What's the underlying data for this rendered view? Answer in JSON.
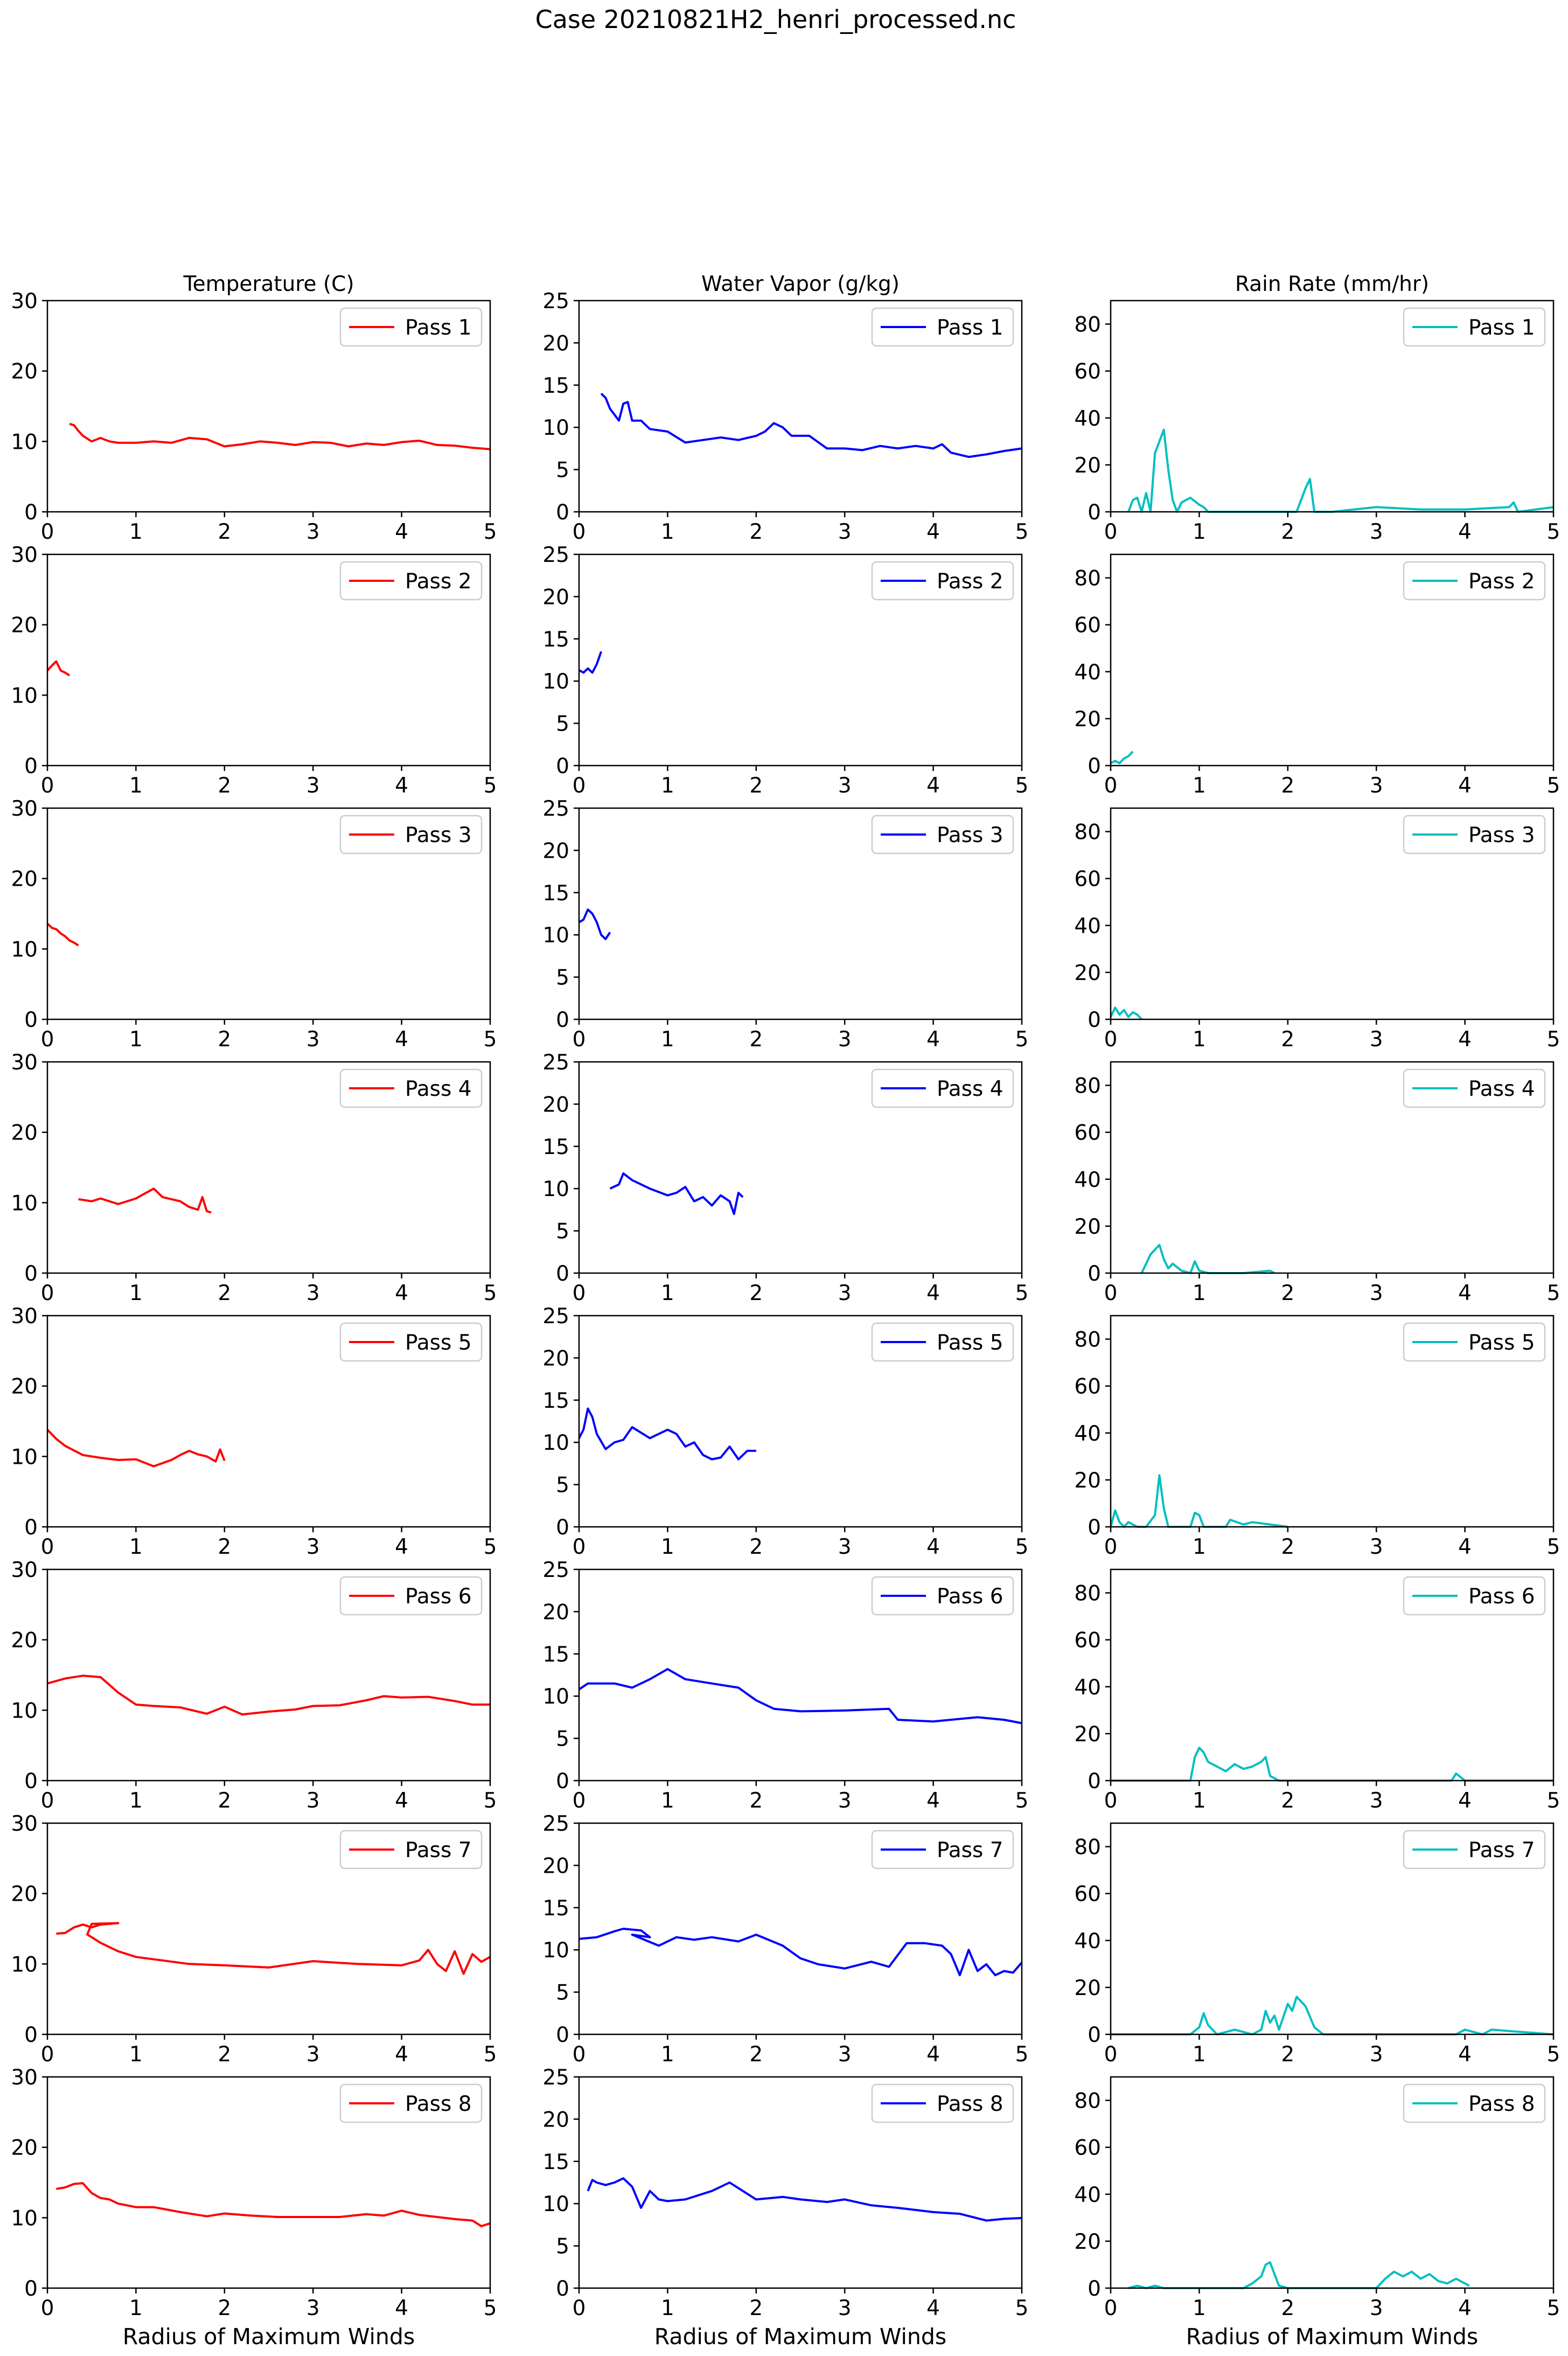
{
  "figure": {
    "title": "Case 20210821H2_henri_processed.nc"
  },
  "columns": [
    {
      "title": "Temperature (C)",
      "color": "#ff0000",
      "ylim": [
        0,
        30
      ],
      "yticks": [
        0,
        10,
        20,
        30
      ]
    },
    {
      "title": "Water Vapor (g/kg)",
      "color": "#0000ff",
      "ylim": [
        0,
        25
      ],
      "yticks": [
        0,
        5,
        10,
        15,
        20,
        25
      ]
    },
    {
      "title": "Rain Rate (mm/hr)",
      "color": "#00bfbf",
      "ylim": [
        0,
        90
      ],
      "yticks": [
        0,
        20,
        40,
        60,
        80
      ]
    }
  ],
  "xaxis": {
    "xlim": [
      0,
      5
    ],
    "xticks": [
      0,
      1,
      2,
      3,
      4,
      5
    ],
    "xlabel": "Radius of Maximum Winds"
  },
  "passes": [
    "Pass 1",
    "Pass 2",
    "Pass 3",
    "Pass 4",
    "Pass 5",
    "Pass 6",
    "Pass 7",
    "Pass 8"
  ],
  "chart_data": {
    "type": "line",
    "layout": "8 rows (passes) x 3 columns (variables)",
    "xlabel": "Radius of Maximum Winds",
    "xlim": [
      0,
      5
    ],
    "grid": false,
    "legend_position": "top-right",
    "series": [
      [
        {
          "name": "Pass 1",
          "x": [
            0.25,
            0.3,
            0.35,
            0.4,
            0.5,
            0.6,
            0.7,
            0.8,
            1.0,
            1.2,
            1.4,
            1.6,
            1.8,
            2.0,
            2.2,
            2.4,
            2.6,
            2.8,
            3.0,
            3.2,
            3.4,
            3.6,
            3.8,
            4.0,
            4.2,
            4.4,
            4.6,
            4.8,
            5.0
          ],
          "y": [
            12.5,
            12.3,
            11.5,
            10.8,
            10.0,
            10.5,
            10.0,
            9.8,
            9.8,
            10.0,
            9.8,
            10.5,
            10.3,
            9.3,
            9.6,
            10.0,
            9.8,
            9.5,
            9.9,
            9.8,
            9.3,
            9.7,
            9.5,
            9.9,
            10.1,
            9.5,
            9.4,
            9.1,
            8.9
          ]
        },
        {
          "name": "Pass 2",
          "x": [
            0.0,
            0.05,
            0.1,
            0.15,
            0.2,
            0.25
          ],
          "y": [
            13.5,
            14.2,
            14.8,
            13.5,
            13.2,
            12.8
          ]
        },
        {
          "name": "Pass 3",
          "x": [
            0.0,
            0.05,
            0.1,
            0.15,
            0.2,
            0.25,
            0.3,
            0.35
          ],
          "y": [
            13.6,
            13.0,
            12.8,
            12.2,
            11.8,
            11.2,
            10.9,
            10.5
          ]
        },
        {
          "name": "Pass 4",
          "x": [
            0.35,
            0.5,
            0.6,
            0.8,
            1.0,
            1.1,
            1.2,
            1.3,
            1.4,
            1.5,
            1.6,
            1.7,
            1.75,
            1.8,
            1.85
          ],
          "y": [
            10.5,
            10.2,
            10.6,
            9.8,
            10.6,
            11.3,
            12.0,
            10.8,
            10.5,
            10.2,
            9.4,
            9.0,
            10.8,
            8.8,
            8.6
          ]
        },
        {
          "name": "Pass 5",
          "x": [
            0.0,
            0.1,
            0.2,
            0.4,
            0.6,
            0.8,
            1.0,
            1.2,
            1.4,
            1.5,
            1.6,
            1.7,
            1.8,
            1.9,
            1.95,
            2.0
          ],
          "y": [
            13.8,
            12.5,
            11.5,
            10.2,
            9.8,
            9.5,
            9.6,
            8.6,
            9.5,
            10.2,
            10.8,
            10.3,
            10.0,
            9.3,
            11.0,
            9.4
          ]
        },
        {
          "name": "Pass 6",
          "x": [
            0.0,
            0.2,
            0.4,
            0.6,
            0.7,
            0.8,
            1.0,
            1.2,
            1.5,
            1.8,
            2.0,
            2.2,
            2.5,
            2.8,
            3.0,
            3.3,
            3.6,
            3.8,
            4.0,
            4.3,
            4.6,
            4.8,
            5.0
          ],
          "y": [
            13.8,
            14.5,
            14.9,
            14.7,
            13.6,
            12.5,
            10.8,
            10.6,
            10.4,
            9.5,
            10.5,
            9.4,
            9.8,
            10.1,
            10.6,
            10.7,
            11.4,
            12.0,
            11.8,
            11.9,
            11.3,
            10.8,
            10.8
          ]
        },
        {
          "name": "Pass 7",
          "x": [
            0.1,
            0.2,
            0.3,
            0.35,
            0.4,
            0.5,
            0.6,
            0.7,
            0.8,
            0.5,
            0.45,
            0.6,
            0.8,
            1.0,
            1.3,
            1.6,
            2.0,
            2.5,
            3.0,
            3.5,
            4.0,
            4.2,
            4.3,
            4.4,
            4.5,
            4.6,
            4.7,
            4.8,
            4.9,
            5.0
          ],
          "y": [
            14.3,
            14.4,
            15.2,
            15.4,
            15.6,
            15.2,
            15.6,
            15.7,
            15.8,
            15.7,
            14.2,
            13.0,
            11.8,
            11.0,
            10.5,
            10.0,
            9.8,
            9.5,
            10.4,
            10.0,
            9.8,
            10.5,
            12.0,
            10.0,
            9.0,
            11.8,
            8.6,
            11.4,
            10.3,
            11.0
          ]
        },
        {
          "name": "Pass 8",
          "x": [
            0.1,
            0.2,
            0.3,
            0.4,
            0.5,
            0.6,
            0.7,
            0.8,
            1.0,
            1.2,
            1.5,
            1.8,
            2.0,
            2.3,
            2.6,
            3.0,
            3.3,
            3.6,
            3.8,
            4.0,
            4.2,
            4.4,
            4.6,
            4.8,
            4.9,
            5.0
          ],
          "y": [
            14.1,
            14.3,
            14.8,
            14.9,
            13.5,
            12.8,
            12.6,
            12.0,
            11.5,
            11.5,
            10.8,
            10.2,
            10.6,
            10.3,
            10.1,
            10.1,
            10.1,
            10.5,
            10.3,
            11.0,
            10.4,
            10.1,
            9.8,
            9.6,
            8.8,
            9.2
          ]
        }
      ],
      [
        {
          "name": "Pass 1",
          "x": [
            0.25,
            0.3,
            0.35,
            0.4,
            0.45,
            0.5,
            0.55,
            0.6,
            0.7,
            0.8,
            1.0,
            1.2,
            1.4,
            1.6,
            1.8,
            2.0,
            2.1,
            2.2,
            2.3,
            2.4,
            2.6,
            2.8,
            3.0,
            3.2,
            3.4,
            3.6,
            3.8,
            4.0,
            4.1,
            4.2,
            4.4,
            4.6,
            4.8,
            5.0
          ],
          "y": [
            14.0,
            13.5,
            12.2,
            11.5,
            10.8,
            12.8,
            13.0,
            10.8,
            10.8,
            9.8,
            9.5,
            8.2,
            8.5,
            8.8,
            8.5,
            9.0,
            9.5,
            10.5,
            10.0,
            9.0,
            9.0,
            7.5,
            7.5,
            7.3,
            7.8,
            7.5,
            7.8,
            7.5,
            8.0,
            7.0,
            6.5,
            6.8,
            7.2,
            7.5
          ]
        },
        {
          "name": "Pass 2",
          "x": [
            0.0,
            0.05,
            0.1,
            0.15,
            0.2,
            0.25
          ],
          "y": [
            11.3,
            11.0,
            11.5,
            11.0,
            12.0,
            13.5
          ]
        },
        {
          "name": "Pass 3",
          "x": [
            0.0,
            0.05,
            0.1,
            0.15,
            0.2,
            0.25,
            0.3,
            0.35
          ],
          "y": [
            11.5,
            11.8,
            13.0,
            12.5,
            11.5,
            10.0,
            9.5,
            10.3
          ]
        },
        {
          "name": "Pass 4",
          "x": [
            0.35,
            0.45,
            0.5,
            0.6,
            0.8,
            1.0,
            1.1,
            1.2,
            1.3,
            1.4,
            1.5,
            1.6,
            1.7,
            1.75,
            1.8,
            1.85
          ],
          "y": [
            10.0,
            10.5,
            11.8,
            11.0,
            10.0,
            9.2,
            9.5,
            10.2,
            8.5,
            9.0,
            8.0,
            9.2,
            8.5,
            7.0,
            9.5,
            9.0
          ]
        },
        {
          "name": "Pass 5",
          "x": [
            0.0,
            0.05,
            0.1,
            0.15,
            0.2,
            0.3,
            0.4,
            0.5,
            0.6,
            0.8,
            1.0,
            1.1,
            1.2,
            1.3,
            1.4,
            1.5,
            1.6,
            1.7,
            1.8,
            1.9,
            2.0
          ],
          "y": [
            10.5,
            11.5,
            14.0,
            13.0,
            11.0,
            9.2,
            10.0,
            10.3,
            11.8,
            10.5,
            11.5,
            11.0,
            9.5,
            10.0,
            8.5,
            8.0,
            8.2,
            9.5,
            8.0,
            9.0,
            9.0
          ]
        },
        {
          "name": "Pass 6",
          "x": [
            0.0,
            0.1,
            0.2,
            0.4,
            0.6,
            0.8,
            1.0,
            1.2,
            1.5,
            1.8,
            2.0,
            2.2,
            2.5,
            3.0,
            3.5,
            3.6,
            4.0,
            4.5,
            4.8,
            5.0
          ],
          "y": [
            10.8,
            11.5,
            11.5,
            11.5,
            11.0,
            12.0,
            13.2,
            12.0,
            11.5,
            11.0,
            9.5,
            8.5,
            8.2,
            8.3,
            8.5,
            7.2,
            7.0,
            7.5,
            7.2,
            6.8
          ]
        },
        {
          "name": "Pass 7",
          "x": [
            0.0,
            0.2,
            0.4,
            0.5,
            0.7,
            0.8,
            0.6,
            0.9,
            1.1,
            1.3,
            1.5,
            1.8,
            2.0,
            2.3,
            2.5,
            2.7,
            3.0,
            3.3,
            3.5,
            3.7,
            3.9,
            4.1,
            4.2,
            4.3,
            4.4,
            4.5,
            4.6,
            4.7,
            4.8,
            4.9,
            5.0
          ],
          "y": [
            11.3,
            11.5,
            12.2,
            12.5,
            12.3,
            11.5,
            11.8,
            10.5,
            11.5,
            11.2,
            11.5,
            11.0,
            11.8,
            10.5,
            9.0,
            8.3,
            7.8,
            8.6,
            8.0,
            10.8,
            10.8,
            10.5,
            9.5,
            7.0,
            10.0,
            7.5,
            8.3,
            7.0,
            7.5,
            7.3,
            8.5
          ]
        },
        {
          "name": "Pass 8",
          "x": [
            0.1,
            0.15,
            0.2,
            0.3,
            0.4,
            0.5,
            0.6,
            0.7,
            0.8,
            0.9,
            1.0,
            1.2,
            1.5,
            1.7,
            2.0,
            2.3,
            2.5,
            2.8,
            3.0,
            3.3,
            3.6,
            4.0,
            4.3,
            4.6,
            4.8,
            5.0
          ],
          "y": [
            11.5,
            12.8,
            12.5,
            12.2,
            12.5,
            13.0,
            12.0,
            9.5,
            11.5,
            10.5,
            10.3,
            10.5,
            11.5,
            12.5,
            10.5,
            10.8,
            10.5,
            10.2,
            10.5,
            9.8,
            9.5,
            9.0,
            8.8,
            8.0,
            8.2,
            8.3
          ]
        }
      ],
      [
        {
          "name": "Pass 1",
          "x": [
            0.2,
            0.25,
            0.3,
            0.35,
            0.4,
            0.45,
            0.5,
            0.55,
            0.6,
            0.65,
            0.7,
            0.75,
            0.8,
            0.9,
            1.0,
            1.05,
            1.1,
            1.2,
            2.1,
            2.2,
            2.25,
            2.3,
            2.5,
            3.0,
            3.5,
            4.0,
            4.5,
            4.55,
            4.6,
            5.0
          ],
          "y": [
            0,
            5,
            6,
            0,
            8,
            0,
            25,
            30,
            35,
            18,
            5,
            0,
            4,
            6,
            3,
            2,
            0,
            0,
            0,
            10,
            14,
            0,
            0,
            2,
            1,
            1,
            2,
            4,
            0,
            2
          ]
        },
        {
          "name": "Pass 2",
          "x": [
            0.0,
            0.05,
            0.1,
            0.15,
            0.2,
            0.25
          ],
          "y": [
            1,
            2,
            1,
            3,
            4,
            6
          ]
        },
        {
          "name": "Pass 3",
          "x": [
            0.0,
            0.05,
            0.1,
            0.15,
            0.2,
            0.25,
            0.3,
            0.35
          ],
          "y": [
            1,
            5,
            2,
            4,
            1,
            3,
            2,
            0
          ]
        },
        {
          "name": "Pass 4",
          "x": [
            0.35,
            0.4,
            0.45,
            0.5,
            0.55,
            0.6,
            0.65,
            0.7,
            0.8,
            0.9,
            0.95,
            1.0,
            1.1,
            1.5,
            1.8,
            1.85
          ],
          "y": [
            0,
            4,
            8,
            10,
            12,
            6,
            2,
            4,
            1,
            0,
            5,
            1,
            0,
            0,
            1,
            0
          ]
        },
        {
          "name": "Pass 5",
          "x": [
            0.0,
            0.05,
            0.1,
            0.15,
            0.2,
            0.3,
            0.4,
            0.5,
            0.55,
            0.6,
            0.65,
            0.7,
            0.9,
            0.95,
            1.0,
            1.05,
            1.3,
            1.35,
            1.5,
            1.6,
            1.8,
            2.0
          ],
          "y": [
            0,
            7,
            2,
            0,
            2,
            0,
            0,
            5,
            22,
            8,
            0,
            0,
            0,
            6,
            5,
            0,
            0,
            3,
            1,
            2,
            1,
            0
          ]
        },
        {
          "name": "Pass 6",
          "x": [
            0.0,
            0.9,
            0.95,
            1.0,
            1.05,
            1.1,
            1.2,
            1.3,
            1.4,
            1.5,
            1.6,
            1.7,
            1.75,
            1.8,
            1.9,
            3.5,
            3.85,
            3.9,
            4.0,
            5.0
          ],
          "y": [
            0,
            0,
            10,
            14,
            12,
            8,
            6,
            4,
            7,
            5,
            6,
            8,
            10,
            2,
            0,
            0,
            0,
            3,
            0,
            0
          ]
        },
        {
          "name": "Pass 7",
          "x": [
            0.0,
            0.9,
            1.0,
            1.05,
            1.1,
            1.2,
            1.4,
            1.6,
            1.7,
            1.75,
            1.8,
            1.85,
            1.9,
            2.0,
            2.05,
            2.1,
            2.2,
            2.3,
            2.4,
            3.0,
            3.9,
            4.0,
            4.2,
            4.3,
            5.0
          ],
          "y": [
            0,
            0,
            3,
            9,
            4,
            0,
            2,
            0,
            2,
            10,
            5,
            8,
            2,
            13,
            10,
            16,
            12,
            3,
            0,
            0,
            0,
            2,
            0,
            2,
            0
          ]
        },
        {
          "name": "Pass 8",
          "x": [
            0.2,
            0.3,
            0.4,
            0.5,
            0.6,
            1.0,
            1.5,
            1.6,
            1.7,
            1.75,
            1.8,
            1.85,
            1.9,
            2.0,
            2.5,
            3.0,
            3.1,
            3.2,
            3.3,
            3.4,
            3.5,
            3.6,
            3.7,
            3.8,
            3.9,
            4.0,
            4.05
          ],
          "y": [
            0,
            1,
            0,
            1,
            0,
            0,
            0,
            2,
            5,
            10,
            11,
            6,
            1,
            0,
            0,
            0,
            4,
            7,
            5,
            7,
            4,
            6,
            3,
            2,
            4,
            2,
            1
          ]
        }
      ]
    ]
  }
}
